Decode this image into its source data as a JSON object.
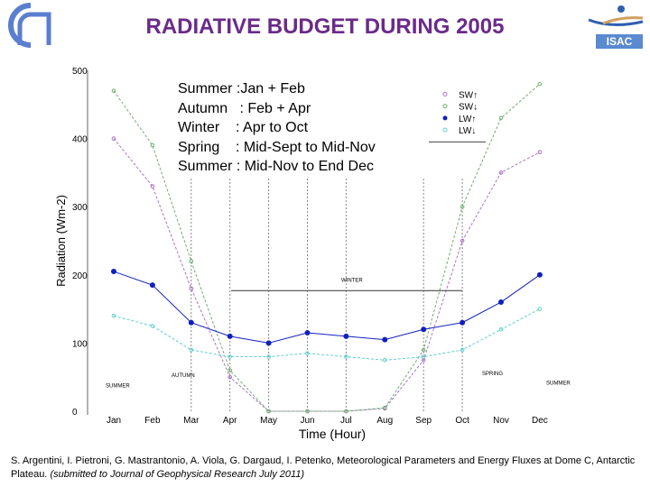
{
  "title": "RADIATIVE BUDGET DURING 2005",
  "logos": {
    "right_text": "ISAC"
  },
  "seasons": [
    {
      "name": "Summer",
      "range": ":Jan + Feb"
    },
    {
      "name": "Autumn",
      "range": ": Feb + Apr"
    },
    {
      "name": "Winter",
      "range": ": Apr to Oct"
    },
    {
      "name": "Spring",
      "range": ": Mid-Sept to Mid-Nov"
    },
    {
      "name": "Summer",
      "range": ": Mid-Nov to End Dec"
    }
  ],
  "annotations": {
    "winter": "WINTER",
    "autumn": "AUTUMN",
    "summer1": "SUMMER",
    "spring": "SPRING",
    "summer2": "SUMMER"
  },
  "citation": {
    "main": "S. Argentini, I. Pietroni, G. Mastrantonio, A. Viola, G. Dargaud, I. Petenko, Meteorological Parameters and Energy Fluxes at Dome C, Antarctic Plateau.",
    "note": "(submitted to Journal of Geophysical Research July 2011)"
  },
  "chart_data": {
    "type": "scatter",
    "title": "",
    "xlabel": "Time (Hour)",
    "ylabel": "Radiation (Wm-2)",
    "ylim": [
      0,
      500
    ],
    "yticks": [
      "0",
      "100",
      "200",
      "300",
      "400",
      "500"
    ],
    "categories": [
      "Jan",
      "Feb",
      "Mar",
      "Apr",
      "May",
      "Jun",
      "Jul",
      "Aug",
      "Sep",
      "Oct",
      "Nov",
      "Dec"
    ],
    "legend_position": "top-right",
    "series": [
      {
        "name": "SW↑",
        "color": "#b070c8",
        "values": [
          400,
          330,
          180,
          50,
          0,
          0,
          0,
          4,
          75,
          250,
          350,
          380
        ]
      },
      {
        "name": "SW↓",
        "color": "#70b070",
        "values": [
          470,
          390,
          220,
          60,
          0,
          0,
          0,
          5,
          90,
          300,
          430,
          480
        ]
      },
      {
        "name": "LW↑",
        "color": "#1020c0",
        "values": [
          205,
          185,
          130,
          110,
          100,
          115,
          110,
          105,
          120,
          130,
          160,
          200
        ]
      },
      {
        "name": "LW↓",
        "color": "#60d0d0",
        "values": [
          140,
          125,
          90,
          80,
          80,
          85,
          80,
          75,
          80,
          90,
          120,
          150
        ]
      }
    ]
  }
}
